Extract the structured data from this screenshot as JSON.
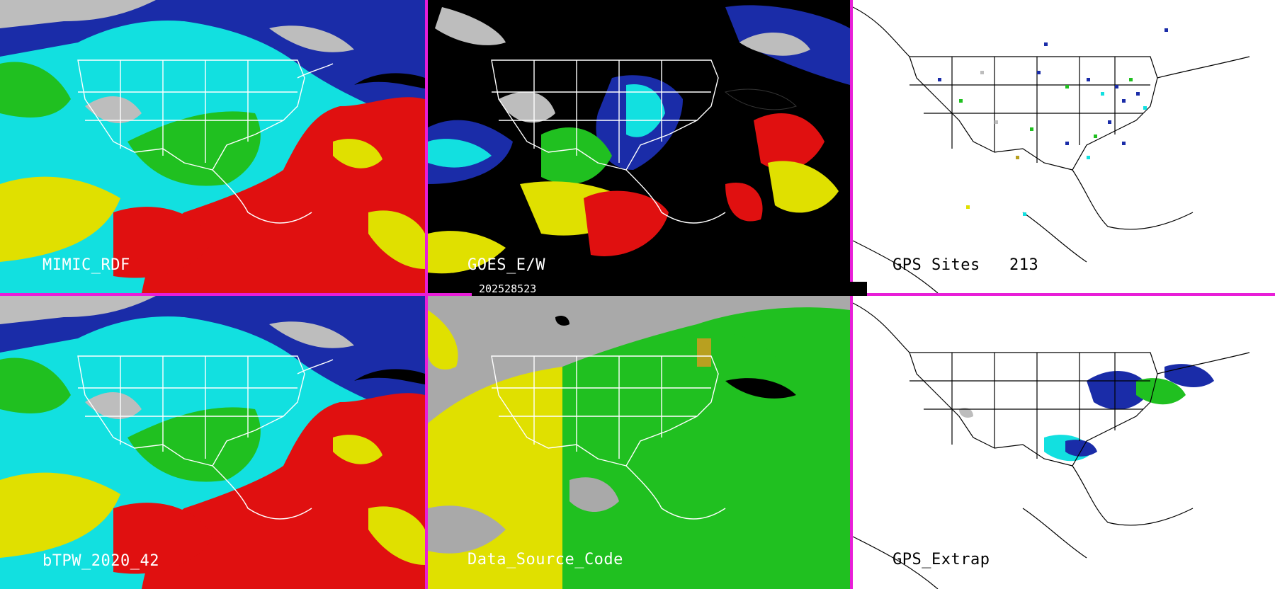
{
  "panels": [
    {
      "id": "mimic",
      "label": "MIMIC_RDF"
    },
    {
      "id": "goes",
      "label": "GOES_E/W"
    },
    {
      "id": "gps-sites",
      "label": "GPS Sites",
      "count": "213"
    },
    {
      "id": "btpw",
      "label": "bTPW_2020_42"
    },
    {
      "id": "data-source",
      "label": "Data_Source_Code"
    },
    {
      "id": "gps-extrap",
      "label": "GPS_Extrap"
    }
  ],
  "timestamp": "202528523",
  "colors": {
    "divider": "#e81ed8",
    "very_moist": "#e01010",
    "moist": "#e0e000",
    "mid": "#20c020",
    "dry_cyan": "#10e0e0",
    "drier_blue": "#1020b0",
    "driest_gray": "#b0b0b0",
    "source_goes": "#e0e000",
    "source_other": "#20c020",
    "source_none": "#a9a9a9"
  }
}
